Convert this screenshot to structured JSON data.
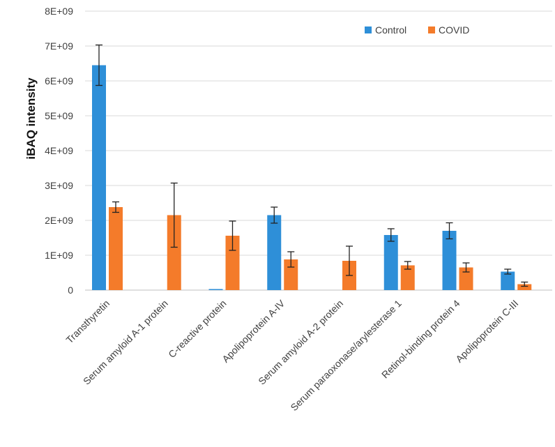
{
  "chart_data": {
    "type": "bar",
    "title": "",
    "xlabel": "",
    "ylabel": "iBAQ intensity",
    "ylim": [
      0,
      8000000000
    ],
    "yticks": [
      0,
      1000000000,
      2000000000,
      3000000000,
      4000000000,
      5000000000,
      6000000000,
      7000000000,
      8000000000
    ],
    "ytick_labels": [
      "0",
      "1E+09",
      "2E+09",
      "3E+09",
      "4E+09",
      "5E+09",
      "6E+09",
      "7E+09",
      "8E+09"
    ],
    "grid": true,
    "legend_position": "top-right",
    "categories": [
      "Transthyretin",
      "Serum amyloid A-1 protein",
      "C-reactive protein",
      "Apolipoprotein A-IV",
      "Serum amyloid A-2 protein",
      "Serum paraoxonase/arylesterase 1",
      "Retinol-binding protein 4",
      "Apolipoprotein C-III"
    ],
    "series": [
      {
        "name": "Control",
        "color": "#2E8FD8",
        "values": [
          6450000000,
          0,
          30000000,
          2150000000,
          0,
          1580000000,
          1700000000,
          530000000
        ],
        "errors": [
          580000000,
          0,
          0,
          230000000,
          0,
          180000000,
          230000000,
          70000000
        ]
      },
      {
        "name": "COVID",
        "color": "#F47B2A",
        "values": [
          2380000000,
          2150000000,
          1560000000,
          880000000,
          840000000,
          710000000,
          650000000,
          170000000
        ],
        "errors": [
          150000000,
          920000000,
          420000000,
          220000000,
          420000000,
          110000000,
          130000000,
          60000000
        ]
      }
    ]
  }
}
